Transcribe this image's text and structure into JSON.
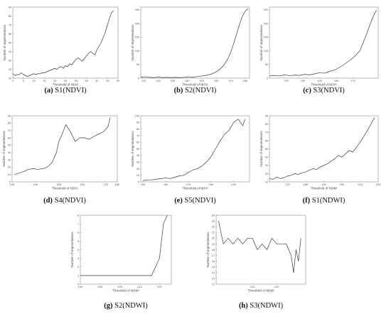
{
  "chart_data": [
    {
      "type": "line",
      "caption_id": "(a)",
      "caption_text": " S1(NDVI)",
      "xlabel": "Threshold of NDVI",
      "ylabel": "Number of segmentations",
      "xlim": [
        0,
        50
      ],
      "ylim": [
        10,
        90
      ],
      "xticks": [
        0,
        5,
        10,
        15,
        20,
        25,
        30,
        35,
        40,
        45,
        50
      ],
      "yticks": [
        10,
        20,
        30,
        40,
        50,
        60,
        70,
        80,
        90
      ],
      "x": [
        0,
        1,
        2,
        3,
        4,
        5,
        6,
        7,
        8,
        9,
        10,
        11,
        12,
        13,
        14,
        15,
        16,
        17,
        18,
        19,
        20,
        21,
        22,
        23,
        24,
        25,
        26,
        27,
        28,
        29,
        30,
        31,
        32,
        33,
        34,
        35,
        36,
        37,
        38,
        39,
        40,
        41,
        42,
        43,
        44,
        45,
        46,
        47,
        48
      ],
      "values": [
        15,
        13,
        14,
        14,
        16,
        14,
        13,
        12,
        13,
        14,
        15,
        14,
        15,
        15,
        16,
        16,
        17,
        18,
        19,
        20,
        21,
        20,
        22,
        23,
        21,
        24,
        23,
        26,
        25,
        28,
        31,
        33,
        31,
        29,
        32,
        35,
        38,
        40,
        38,
        36,
        42,
        46,
        50,
        56,
        62,
        70,
        78,
        84,
        86
      ]
    },
    {
      "type": "line",
      "caption_id": "(b)",
      "caption_text": " S2(NDVI)",
      "xlabel": "Threshold of NDVI",
      "ylabel": "Number of segmentations",
      "xlim": [
        108,
        183
      ],
      "ylim": [
        0,
        260
      ],
      "xticks": [
        110,
        120,
        130,
        140,
        150,
        160,
        170,
        180
      ],
      "yticks": [
        0,
        50,
        100,
        150,
        200,
        250
      ],
      "x": [
        108,
        111,
        114,
        117,
        120,
        123,
        126,
        129,
        132,
        135,
        138,
        141,
        144,
        147,
        150,
        153,
        156,
        159,
        162,
        165,
        168,
        170,
        172,
        174,
        176,
        178,
        180,
        182
      ],
      "values": [
        3,
        5,
        3,
        2,
        4,
        2,
        3,
        2,
        3,
        2,
        3,
        5,
        3,
        6,
        8,
        10,
        14,
        20,
        30,
        45,
        70,
        95,
        125,
        160,
        195,
        225,
        245,
        255
      ]
    },
    {
      "type": "line",
      "caption_id": "(c)",
      "caption_text": " S3(NDVI)",
      "xlabel": "Threshold of NDVI",
      "ylabel": "Number of segmentations",
      "xlim": [
        120,
        185
      ],
      "ylim": [
        0,
        260
      ],
      "xticks": [
        130,
        140,
        150,
        160,
        170
      ],
      "yticks": [
        0,
        50,
        100,
        150,
        200,
        250
      ],
      "x": [
        120,
        123,
        126,
        129,
        132,
        135,
        138,
        141,
        144,
        147,
        150,
        153,
        156,
        159,
        162,
        165,
        168,
        171,
        174,
        176,
        178,
        180,
        182,
        184
      ],
      "values": [
        8,
        10,
        8,
        12,
        9,
        11,
        10,
        14,
        12,
        16,
        20,
        18,
        25,
        30,
        40,
        52,
        65,
        80,
        100,
        130,
        160,
        195,
        225,
        250
      ]
    },
    {
      "type": "line",
      "caption_id": "(d)",
      "caption_text": " S4(NDVI)",
      "xlabel": "Threshold of NDVI",
      "ylabel": "Number of segmentations",
      "xlim": [
        135,
        180
      ],
      "ylim": [
        0,
        90
      ],
      "xticks": [
        135,
        145,
        155,
        165,
        175,
        180
      ],
      "yticks": [
        0,
        10,
        20,
        30,
        40,
        50,
        60,
        70,
        80,
        90
      ],
      "x": [
        136,
        138,
        140,
        142,
        144,
        146,
        148,
        150,
        152,
        154,
        155,
        156,
        157,
        158,
        160,
        162,
        164,
        166,
        168,
        170,
        172,
        174,
        176,
        177
      ],
      "values": [
        10,
        12,
        14,
        17,
        18,
        17,
        18,
        20,
        26,
        40,
        55,
        62,
        70,
        78,
        68,
        55,
        60,
        60,
        58,
        62,
        65,
        68,
        75,
        88
      ]
    },
    {
      "type": "line",
      "caption_id": "(e)",
      "caption_text": " S5(NDVI)",
      "xlabel": "Threshold of NDVI",
      "ylabel": "Number of segmentations",
      "xlim": [
        149,
        197
      ],
      "ylim": [
        0,
        100
      ],
      "xticks": [
        150,
        160,
        170,
        180,
        190
      ],
      "yticks": [
        0,
        10,
        20,
        30,
        40,
        50,
        60,
        70,
        80,
        90,
        100
      ],
      "x": [
        150,
        152,
        154,
        156,
        158,
        160,
        162,
        164,
        166,
        168,
        170,
        172,
        174,
        176,
        178,
        180,
        182,
        184,
        186,
        188,
        190,
        192,
        194,
        195
      ],
      "values": [
        2,
        3,
        3,
        4,
        5,
        6,
        5,
        7,
        9,
        10,
        14,
        18,
        20,
        24,
        30,
        38,
        50,
        62,
        72,
        78,
        90,
        95,
        85,
        95
      ]
    },
    {
      "type": "line",
      "caption_id": "(f)",
      "caption_text": " S1(NDWI)",
      "xlabel": "Threshold of NDWI",
      "ylabel": "Number of segmentations",
      "xlim": [
        160,
        220
      ],
      "ylim": [
        10,
        90
      ],
      "xticks": [
        170,
        180,
        190,
        200,
        210,
        220
      ],
      "yticks": [
        10,
        20,
        30,
        40,
        50,
        60,
        70,
        80,
        90
      ],
      "x": [
        160,
        162,
        164,
        166,
        168,
        170,
        172,
        174,
        176,
        178,
        180,
        182,
        184,
        186,
        188,
        190,
        192,
        194,
        196,
        198,
        200,
        202,
        204,
        206,
        208,
        210,
        212,
        214,
        216,
        218
      ],
      "values": [
        14,
        13,
        16,
        14,
        15,
        17,
        18,
        20,
        19,
        21,
        22,
        24,
        26,
        25,
        28,
        30,
        32,
        35,
        38,
        42,
        40,
        44,
        48,
        46,
        52,
        58,
        65,
        72,
        80,
        88
      ]
    },
    {
      "type": "line",
      "caption_id": "(g)",
      "caption_text": " S2(NDWI)",
      "xlabel": "Threshold of NDWI",
      "ylabel": "Number of segmentations",
      "xlim": [
        195,
        218
      ],
      "ylim": [
        0,
        8
      ],
      "xticks": [
        195,
        200,
        205,
        210,
        215
      ],
      "yticks": [
        0,
        1,
        2,
        3,
        4,
        5,
        6,
        7,
        8
      ],
      "x": [
        195,
        197,
        199,
        201,
        203,
        205,
        207,
        209,
        211,
        212,
        213,
        214,
        215,
        216,
        217
      ],
      "values": [
        1,
        1,
        1,
        1,
        1,
        1,
        1,
        1,
        1,
        1,
        1,
        2,
        3,
        7,
        8
      ]
    },
    {
      "type": "line",
      "caption_id": "(h)",
      "caption_text": " S3(NDWI)",
      "xlabel": "Threshold of NDWI",
      "ylabel": "Number of segmentations",
      "xlim": [
        95,
        132
      ],
      "ylim": [
        12,
        24
      ],
      "xticks": [
        110,
        120
      ],
      "yticks": [
        12,
        13,
        14,
        15,
        16,
        17,
        18,
        19,
        20,
        21,
        22,
        23,
        24
      ],
      "x": [
        96,
        98,
        100,
        102,
        104,
        106,
        108,
        110,
        112,
        114,
        116,
        118,
        120,
        122,
        124,
        126,
        127,
        128,
        129,
        130
      ],
      "values": [
        23,
        19,
        20,
        19,
        20,
        19,
        20,
        20,
        18,
        19,
        18,
        20,
        19,
        19,
        19,
        17,
        14,
        18,
        16,
        20
      ]
    }
  ]
}
